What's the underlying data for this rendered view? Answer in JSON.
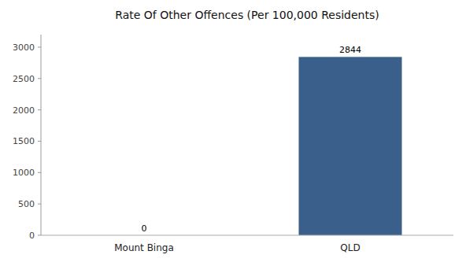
{
  "chart_data": {
    "type": "bar",
    "title": "Rate Of Other Offences (Per 100,000 Residents)",
    "categories": [
      "Mount Binga",
      "QLD"
    ],
    "values": [
      0,
      2844
    ],
    "color": "#3a5f8a",
    "ylim": [
      0,
      3200
    ],
    "yticks": [
      0,
      500,
      1000,
      1500,
      2000,
      2500,
      3000
    ],
    "grid": false,
    "data_labels": true
  }
}
